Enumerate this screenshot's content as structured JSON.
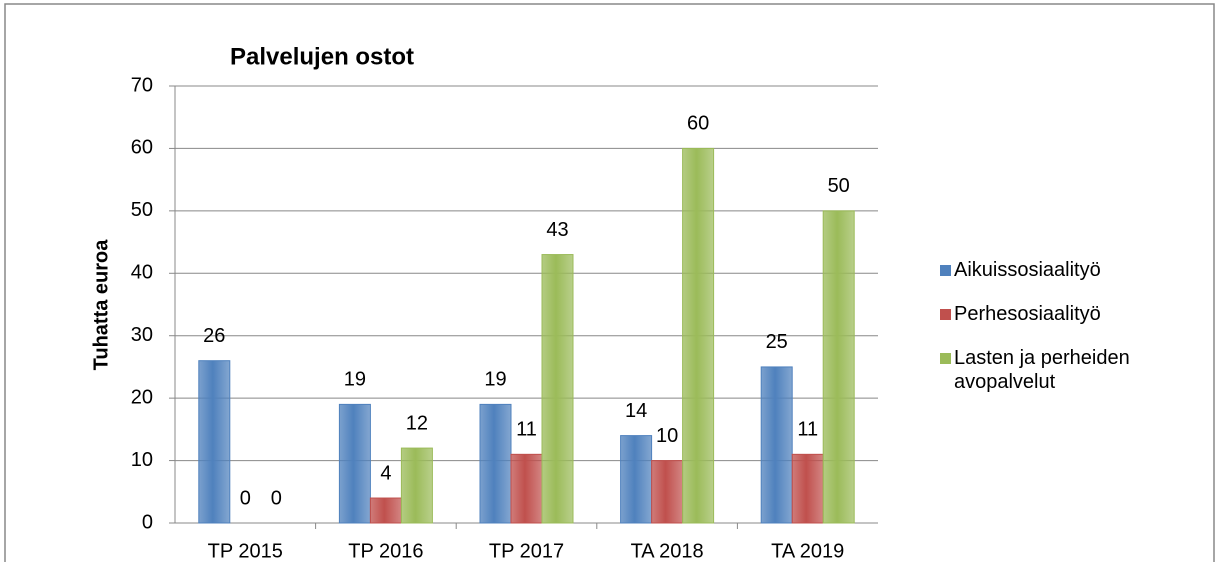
{
  "chart_data": {
    "type": "bar",
    "title": "Palvelujen ostot",
    "y_label": "Tuhatta euroa",
    "categories": [
      "TP 2015",
      "TP 2016",
      "TP 2017",
      "TA 2018",
      "TA 2019"
    ],
    "series": [
      {
        "name": "Aikuissosiaalityö",
        "color": "#4f81bd",
        "values": [
          26,
          19,
          19,
          14,
          25
        ]
      },
      {
        "name": "Perhesosiaalityö",
        "color": "#c0504d",
        "values": [
          0,
          4,
          11,
          10,
          11
        ]
      },
      {
        "name": "Lasten ja perheiden avopalvelut",
        "color": "#9bbb59",
        "values": [
          0,
          12,
          43,
          60,
          50
        ]
      }
    ],
    "ylim": [
      0,
      70
    ],
    "yticks": [
      0,
      10,
      20,
      30,
      40,
      50,
      60,
      70
    ],
    "grid": true,
    "legend": "right"
  }
}
